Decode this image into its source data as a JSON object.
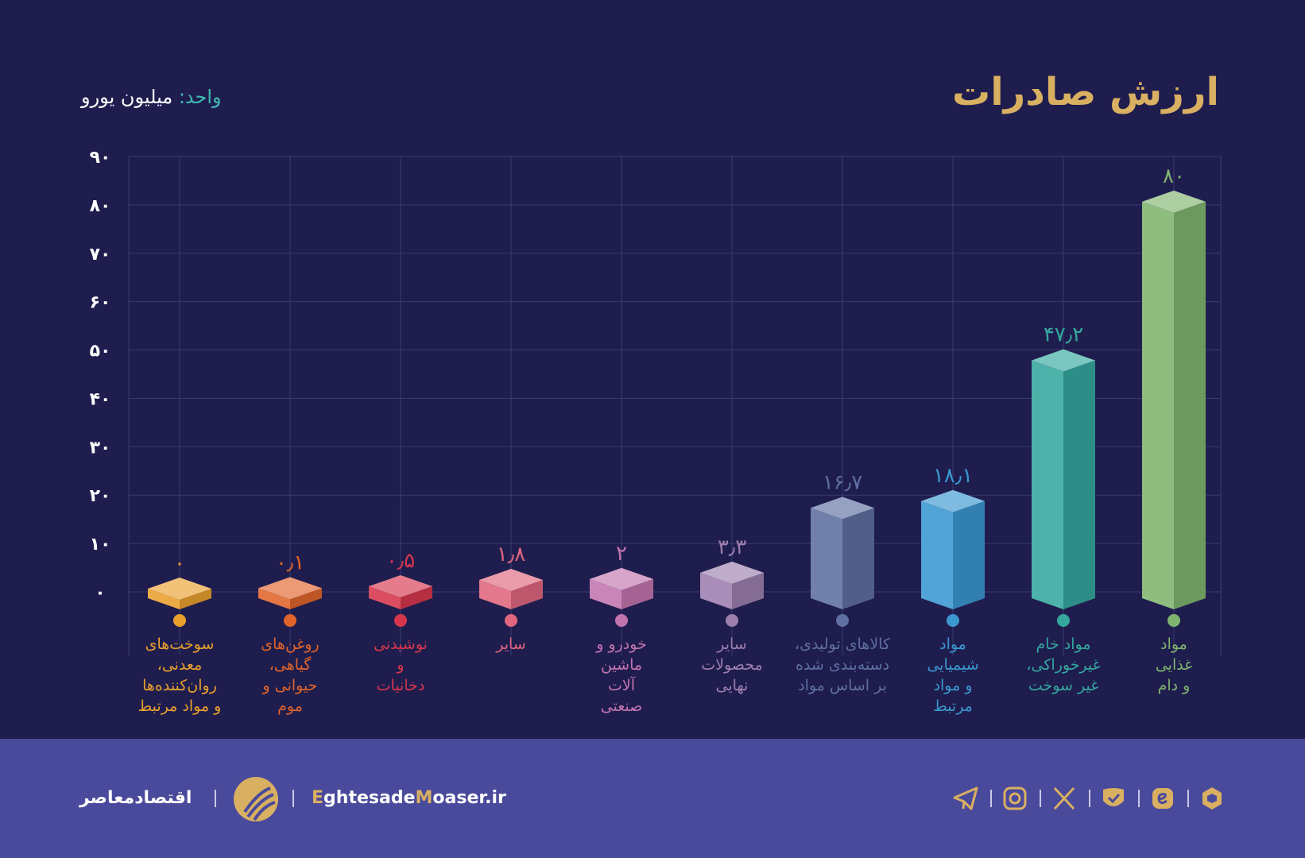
{
  "header": {
    "title": "ارزش صادرات",
    "unit_key": "واحد:",
    "unit_value": "میلیون یورو"
  },
  "chart_data": {
    "type": "bar",
    "title": "ارزش صادرات",
    "ylabel": "واحد: میلیون یورو",
    "ylim": [
      0,
      90
    ],
    "yticks": [
      "۰",
      "۱۰",
      "۲۰",
      "۳۰",
      "۴۰",
      "۵۰",
      "۶۰",
      "۷۰",
      "۸۰",
      "۹۰"
    ],
    "grid": true,
    "categories": [
      [
        "سوخت‌های",
        "معدنی،",
        "روان‌کننده‌ها",
        "و مواد مرتبط"
      ],
      [
        "روغن‌های",
        "گیاهی،",
        "حیوانی و",
        "موم"
      ],
      [
        "نوشیدنی",
        "و",
        "دخانیات"
      ],
      [
        "سایر"
      ],
      [
        "خودرو و",
        "ماشین",
        "آلات",
        "صنعتی"
      ],
      [
        "سایر",
        "محصولات",
        "نهایی"
      ],
      [
        "کالاهای تولیدی،",
        "دسته‌بندی شده",
        "بر اساس مواد"
      ],
      [
        "مواد",
        "شیمیایی",
        "و مواد",
        "مرتبط"
      ],
      [
        "مواد خام",
        "غیرخوراکی،",
        "غیر سوخت"
      ],
      [
        "مواد",
        "غذایی",
        "و دام"
      ]
    ],
    "values": [
      0,
      0.1,
      0.5,
      1.8,
      2,
      3.3,
      16.7,
      18.1,
      47.2,
      80
    ],
    "value_labels": [
      "۰",
      "۰٫۱",
      "۰٫۵",
      "۱٫۸",
      "۲",
      "۳٫۳",
      "۱۶٫۷",
      "۱۸٫۱",
      "۴۷٫۲",
      "۸۰"
    ],
    "colors": [
      "#e9a02d",
      "#e0642a",
      "#d6364c",
      "#e0667e",
      "#c274ae",
      "#9c7fae",
      "#5e6fa0",
      "#3a97d0",
      "#34a79e",
      "#7fb46e"
    ]
  },
  "footer": {
    "brand_fa": "اقتصادمعاصر",
    "site_g1": "E",
    "site_p1": "ghtesade",
    "site_g2": "M",
    "site_p2": "oaser.ir",
    "icons": [
      "telegram-icon",
      "instagram-icon",
      "x-icon",
      "bale-icon",
      "eitaa-icon",
      "rubika-icon"
    ],
    "accent": "#d9b062"
  }
}
